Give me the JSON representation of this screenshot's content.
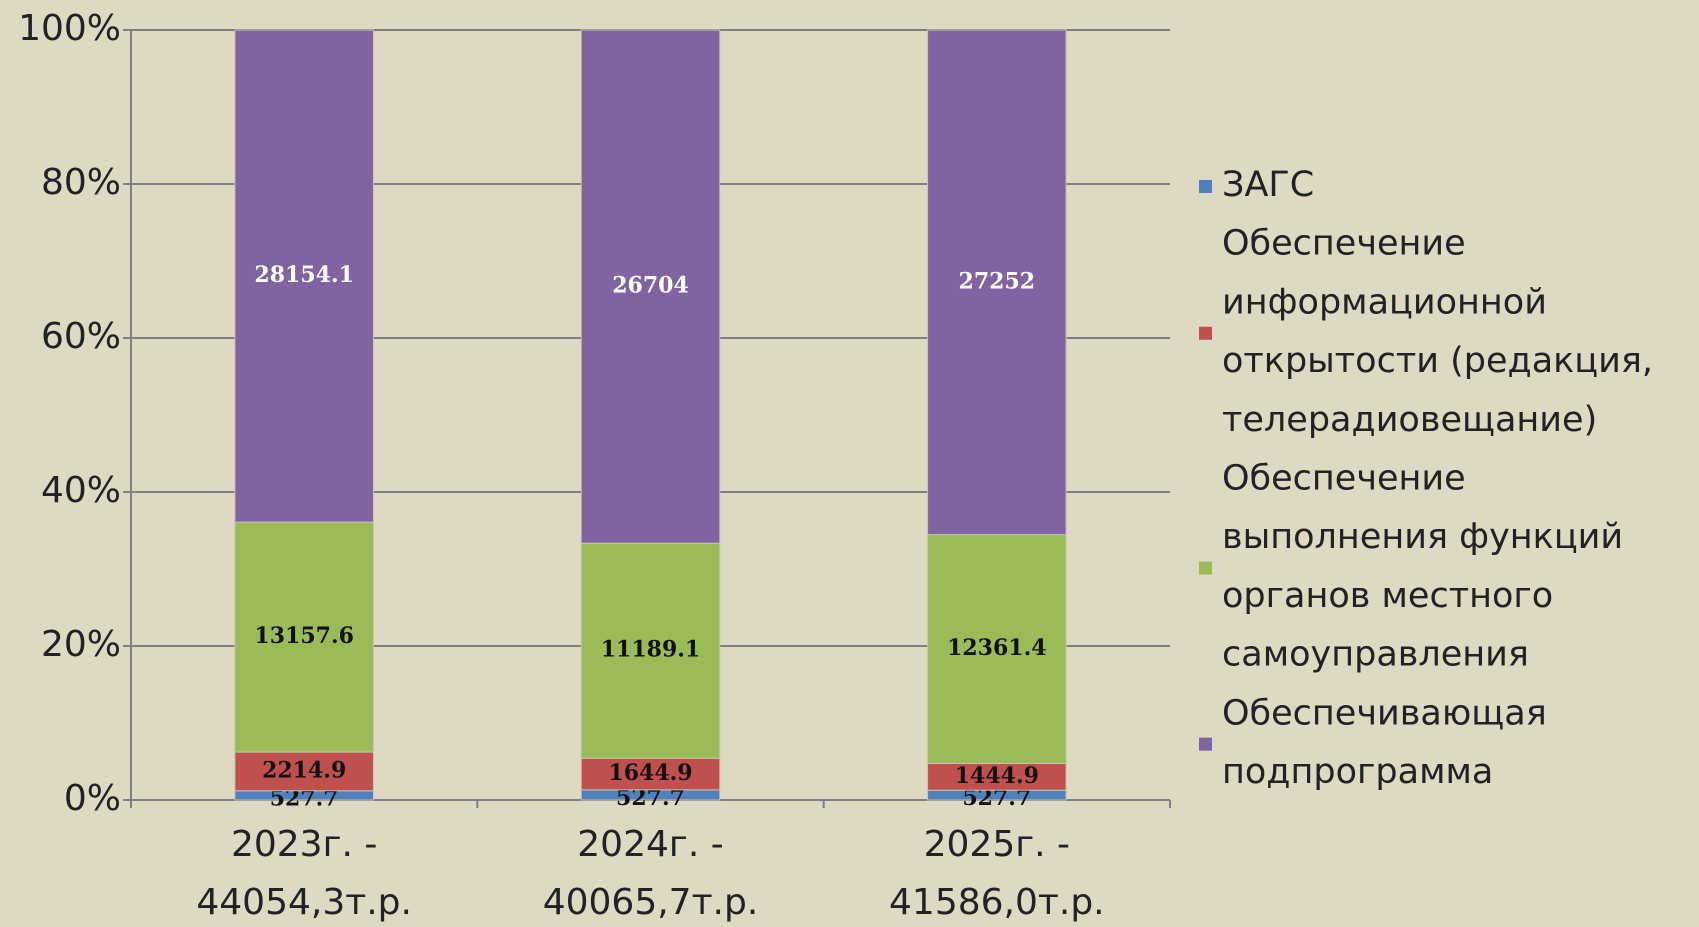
{
  "chart_data": {
    "type": "bar",
    "stacking": "percent",
    "categories": [
      "2023г. - 44054,3т.р.",
      "2024г. - 40065,7т.р.",
      "2025г. - 41586,0т.р."
    ],
    "series": [
      {
        "name": "ЗАГС",
        "color": "#4f81bd",
        "values": [
          527.7,
          527.7,
          527.7
        ]
      },
      {
        "name": "Обеспечение информационной открытости (редакция, телерадиовещание)",
        "color": "#c0504d",
        "values": [
          2214.9,
          1644.9,
          1444.9
        ]
      },
      {
        "name": "Обеспечение выполнения функций органов местного самоуправления",
        "color": "#9bbb59",
        "values": [
          13157.6,
          11189.1,
          12361.4
        ]
      },
      {
        "name": "Обеспечивающая подпрограмма",
        "color": "#8064a2",
        "values": [
          28154.1,
          26704,
          27252
        ]
      }
    ],
    "ylim": [
      0,
      100
    ],
    "yticks": [
      {
        "value": 0,
        "label": "0%"
      },
      {
        "value": 20,
        "label": "20%"
      },
      {
        "value": 40,
        "label": "40%"
      },
      {
        "value": 60,
        "label": "60%"
      },
      {
        "value": 80,
        "label": "80%"
      },
      {
        "value": 100,
        "label": "100%"
      }
    ],
    "grid": true,
    "legend": "right"
  }
}
